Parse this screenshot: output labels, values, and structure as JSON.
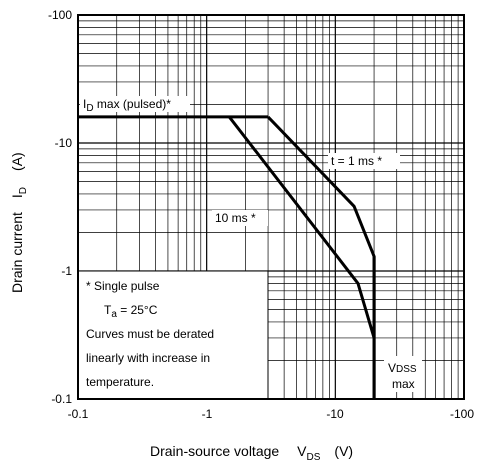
{
  "chart_data": {
    "type": "line",
    "xscale": "log",
    "yscale": "log",
    "xlim": [
      -0.1,
      -100
    ],
    "ylim": [
      -0.1,
      -100
    ],
    "x_ticks": [
      "-0.1",
      "-1",
      "-10",
      "-100"
    ],
    "y_ticks": [
      "-100",
      "-10",
      "-1",
      "-0.1"
    ],
    "xlabel": {
      "main": "Drain-source voltage",
      "symbol": "V",
      "subscript": "DS",
      "unit": "(V)"
    },
    "ylabel": {
      "main": "Drain current",
      "symbol": "I",
      "subscript": "D",
      "unit": "(A)"
    },
    "grid": true,
    "series": [
      {
        "name": "I_D max (pulsed)",
        "x": [
          -0.1,
          -3
        ],
        "y": [
          -16,
          -16
        ]
      },
      {
        "name": "t = 1 ms",
        "x": [
          -3,
          -14,
          -20,
          -20
        ],
        "y": [
          -16,
          -3.2,
          -1.3,
          -0.1
        ]
      },
      {
        "name": "10 ms",
        "x": [
          -1.5,
          -15,
          -20
        ],
        "y": [
          -16,
          -0.8,
          -0.3
        ]
      },
      {
        "name": "VDSS max",
        "x": [
          -20,
          -20
        ],
        "y": [
          -1.3,
          -0.1
        ]
      }
    ],
    "labels": {
      "id_max_pre": "I",
      "id_max_sub": "D",
      "id_max_post": " max (pulsed)*",
      "t1ms": "t = 1 ms *",
      "t10ms": "10 ms *",
      "vdss_pre": "V",
      "vdss_sub": "DSS",
      "vdss_max": "max"
    },
    "notes": {
      "single_pulse": "*  Single pulse",
      "ta_pre": "T",
      "ta_sub": "a",
      "ta_post": " = 25°C",
      "line1": "Curves must be derated",
      "line2": "linearly with increase in",
      "line3": "temperature."
    }
  }
}
